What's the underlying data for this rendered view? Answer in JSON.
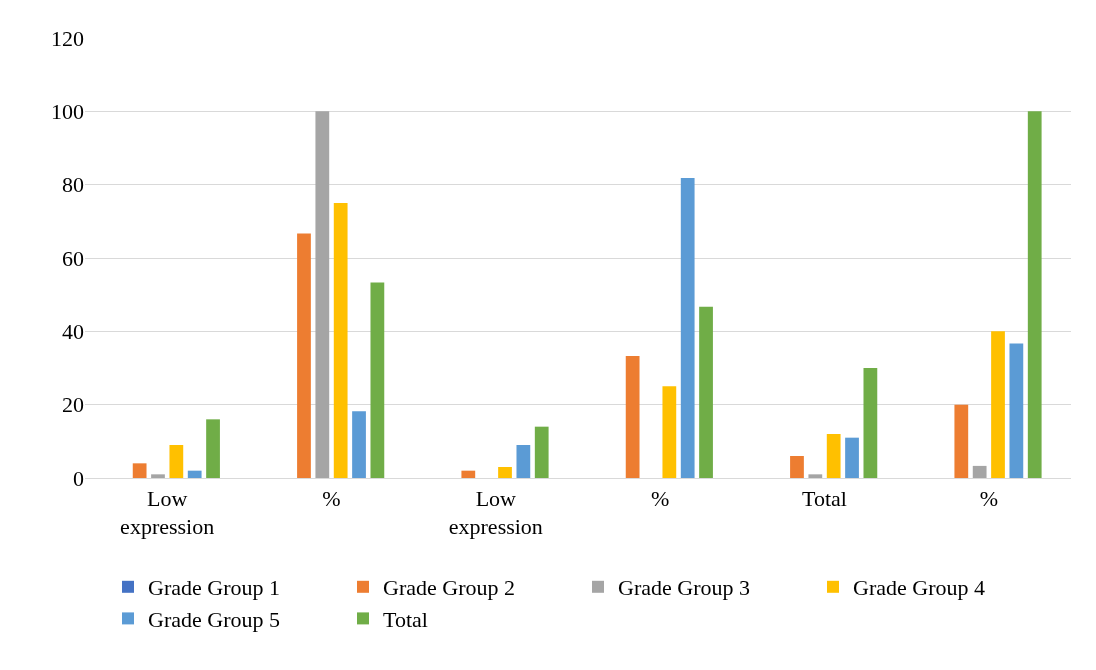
{
  "chart_data": {
    "type": "bar",
    "categories": [
      "Low expression",
      "%",
      "Low expression",
      "%",
      "Total",
      "%"
    ],
    "series": [
      {
        "name": "Grade Group 1",
        "color": "#4472c4",
        "values": [
          0,
          0,
          0,
          0,
          0,
          0
        ]
      },
      {
        "name": "Grade Group 2",
        "color": "#ed7d31",
        "values": [
          4,
          66.7,
          2,
          33.3,
          6,
          20
        ]
      },
      {
        "name": "Grade Group 3",
        "color": "#a5a5a5",
        "values": [
          1,
          100,
          0,
          0,
          1,
          3.3
        ]
      },
      {
        "name": "Grade Group 4",
        "color": "#ffc000",
        "values": [
          9,
          75,
          3,
          25,
          12,
          40
        ]
      },
      {
        "name": "Grade Group 5",
        "color": "#5b9bd5",
        "values": [
          2,
          18.2,
          9,
          81.8,
          11,
          36.7
        ]
      },
      {
        "name": "Total",
        "color": "#70ad47",
        "values": [
          16,
          53.3,
          14,
          46.7,
          30,
          100
        ]
      }
    ],
    "ylim": [
      0,
      120
    ],
    "yticks": [
      0,
      20,
      40,
      60,
      80,
      100,
      120
    ],
    "grid": "y",
    "legend": "bottom"
  }
}
